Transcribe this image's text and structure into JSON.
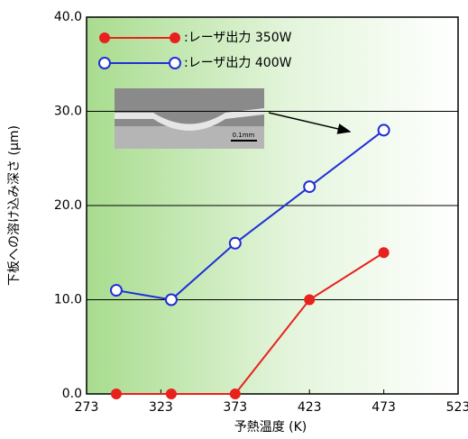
{
  "chart_data": {
    "type": "line",
    "xlabel": "予熱温度 (K)",
    "ylabel": "下板への溶け込み深さ (μm)",
    "annotation": "0.1mm",
    "xlim": [
      273,
      523
    ],
    "xticks": [
      273,
      323,
      373,
      423,
      473,
      523
    ],
    "ylim": [
      0,
      40
    ],
    "yticks": [
      {
        "value": 0,
        "label": "0.0"
      },
      {
        "value": 10,
        "label": "10.0"
      },
      {
        "value": 20,
        "label": "20.0"
      },
      {
        "value": 30,
        "label": "30.0"
      },
      {
        "value": 40,
        "label": "40.0"
      }
    ],
    "grid": true,
    "series": [
      {
        "name": ":レーザ出力 350W",
        "color": "#e8211e",
        "marker": "filled",
        "x": [
          293,
          330,
          373,
          423,
          473
        ],
        "values": [
          0,
          0,
          0,
          10,
          15
        ]
      },
      {
        "name": ":レーザ出力 400W",
        "color": "#1f2fd6",
        "marker": "hollow",
        "x": [
          293,
          330,
          373,
          423,
          473
        ],
        "values": [
          11,
          10,
          16,
          22,
          28
        ]
      }
    ]
  }
}
